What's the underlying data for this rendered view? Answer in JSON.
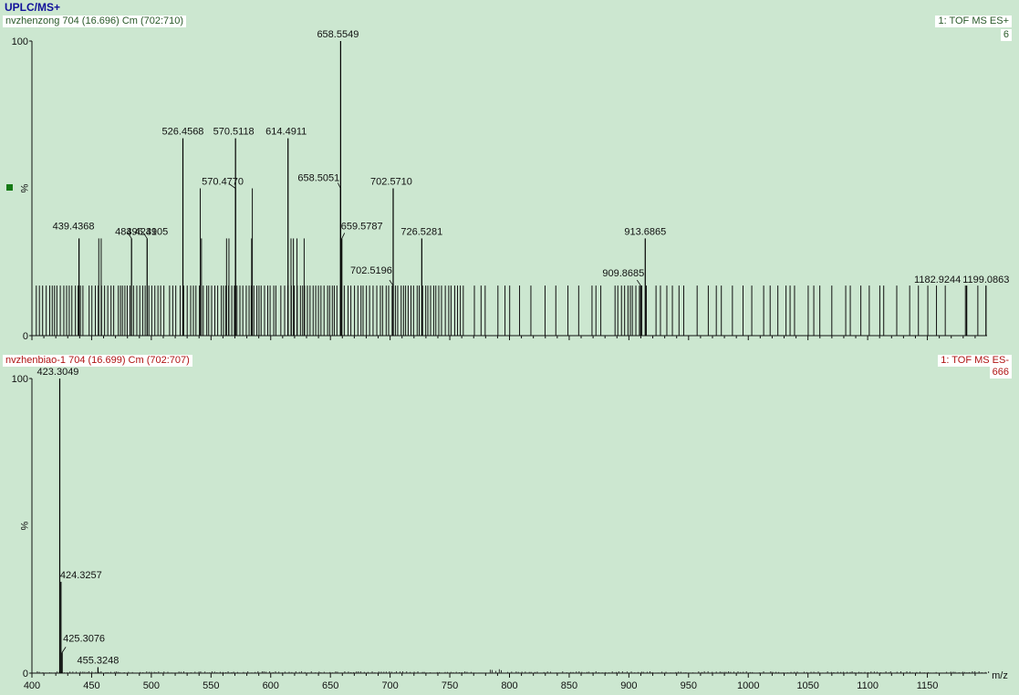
{
  "app": {
    "title": "UPLC/MS+"
  },
  "panels": {
    "top": {
      "header_left": "nvzhenzong 704 (16.696) Cm (702:710)",
      "header_right": "1: TOF MS ES+",
      "count": "6",
      "y_label": "%",
      "y_ticks": [
        "100",
        "0"
      ]
    },
    "bottom": {
      "header_left": "nvzhenbiao-1 704 (16.699) Cm (702:707)",
      "header_right": "1: TOF MS ES-",
      "count": "666",
      "y_label": "%",
      "y_ticks": [
        "100",
        "0"
      ]
    }
  },
  "x_axis": {
    "label": "m/z",
    "ticks": [
      "400",
      "450",
      "500",
      "550",
      "600",
      "650",
      "700",
      "750",
      "800",
      "850",
      "900",
      "950",
      "1000",
      "1050",
      "1100",
      "1150"
    ]
  },
  "colors": {
    "background": "#cce7d0",
    "title": "#10109a",
    "top_header": "#2a5a2a",
    "bottom_header": "#b01414",
    "marker": "#157a15"
  },
  "chart_data": [
    {
      "type": "bar",
      "title": "nvzhenzong 704 (16.696) Cm (702:710)",
      "xlabel": "m/z",
      "ylabel": "%",
      "xlim": [
        400,
        1200
      ],
      "ylim": [
        0,
        100
      ],
      "baseline_level": 17,
      "labeled_peaks": [
        {
          "mz": 439.4368,
          "intensity": 33
        },
        {
          "mz": 483.4231,
          "intensity": 33
        },
        {
          "mz": 496.4905,
          "intensity": 33
        },
        {
          "mz": 526.4568,
          "intensity": 67
        },
        {
          "mz": 570.477,
          "intensity": 50
        },
        {
          "mz": 570.5118,
          "intensity": 67
        },
        {
          "mz": 614.4911,
          "intensity": 67
        },
        {
          "mz": 658.5051,
          "intensity": 50
        },
        {
          "mz": 658.5549,
          "intensity": 100
        },
        {
          "mz": 659.5787,
          "intensity": 33
        },
        {
          "mz": 702.5196,
          "intensity": 17
        },
        {
          "mz": 702.571,
          "intensity": 50
        },
        {
          "mz": 726.5281,
          "intensity": 33
        },
        {
          "mz": 909.8685,
          "intensity": 17
        },
        {
          "mz": 913.6865,
          "intensity": 33
        },
        {
          "mz": 1182.9244,
          "intensity": 17
        },
        {
          "mz": 1199.0863,
          "intensity": 17
        }
      ],
      "peak_labels": [
        "439.4368",
        "483.4231",
        "496.4905",
        "526.4568",
        "570.4770",
        "570.5118",
        "614.4911",
        "658.5051",
        "658.5549",
        "659.5787",
        "702.5196",
        "702.5710",
        "726.5281",
        "909.8685",
        "913.6865",
        "1182.9244",
        "1199.0863"
      ]
    },
    {
      "type": "bar",
      "title": "nvzhenbiao-1 704 (16.699) Cm (702:707)",
      "xlabel": "m/z",
      "ylabel": "%",
      "xlim": [
        400,
        1200
      ],
      "ylim": [
        0,
        100
      ],
      "labeled_peaks": [
        {
          "mz": 423.3049,
          "intensity": 100
        },
        {
          "mz": 424.3257,
          "intensity": 31
        },
        {
          "mz": 425.3076,
          "intensity": 7
        },
        {
          "mz": 455.3248,
          "intensity": 2
        }
      ],
      "peak_labels": [
        "423.3049",
        "424.3257",
        "425.3076",
        "455.3248"
      ]
    }
  ]
}
